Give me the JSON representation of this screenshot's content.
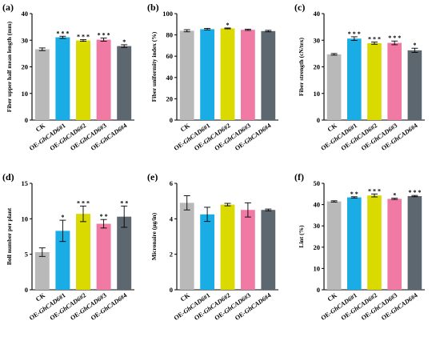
{
  "colors": [
    "#b9b9b9",
    "#1aace4",
    "#dada00",
    "#f07aa4",
    "#5c6770"
  ],
  "categories": [
    {
      "prefix": "",
      "gene": "",
      "suffix": "CK"
    },
    {
      "prefix": "OE-",
      "gene": "GhCAD6",
      "suffix": "#1"
    },
    {
      "prefix": "OE-",
      "gene": "GhCAD6",
      "suffix": "#2"
    },
    {
      "prefix": "OE-",
      "gene": "GhCAD6",
      "suffix": "#3"
    },
    {
      "prefix": "OE-",
      "gene": "GhCAD6",
      "suffix": "#4"
    }
  ],
  "chart_data": [
    {
      "type": "bar",
      "label": "(a)",
      "ylabel": "Fiber upper half mean length (mm)",
      "ylim": [
        0,
        40
      ],
      "yticks": [
        0,
        10,
        20,
        30,
        40
      ],
      "categories": [
        "CK",
        "OE-GhCAD6#1",
        "OE-GhCAD6#2",
        "OE-GhCAD6#3",
        "OE-GhCAD6#4"
      ],
      "values": [
        26.6,
        31.1,
        29.9,
        30.2,
        27.8
      ],
      "errors": [
        0.5,
        0.4,
        0.3,
        0.6,
        0.5
      ],
      "significance": [
        "",
        "* * *",
        "* * *",
        "* * *",
        "*"
      ]
    },
    {
      "type": "bar",
      "label": "(b)",
      "ylabel": "Fiber uniformity index (%)",
      "ylim": [
        0,
        100
      ],
      "yticks": [
        0,
        20,
        40,
        60,
        80,
        100
      ],
      "categories": [
        "CK",
        "OE-GhCAD6#1",
        "OE-GhCAD6#2",
        "OE-GhCAD6#3",
        "OE-GhCAD6#4"
      ],
      "values": [
        83.9,
        85.4,
        86.1,
        84.8,
        83.6
      ],
      "errors": [
        1.0,
        0.7,
        0.4,
        0.6,
        0.7
      ],
      "significance": [
        "",
        "",
        "*",
        "",
        ""
      ]
    },
    {
      "type": "bar",
      "label": "(c)",
      "ylabel": "Fiber strength (cN/tex)",
      "ylim": [
        0,
        40
      ],
      "yticks": [
        0,
        10,
        20,
        30,
        40
      ],
      "categories": [
        "CK",
        "OE-GhCAD6#1",
        "OE-GhCAD6#2",
        "OE-GhCAD6#3",
        "OE-GhCAD6#4"
      ],
      "values": [
        24.7,
        30.6,
        28.9,
        29.0,
        26.2
      ],
      "errors": [
        0.3,
        0.7,
        0.4,
        0.7,
        0.8
      ],
      "significance": [
        "",
        "* * *",
        "* * *",
        "* * *",
        "*"
      ]
    },
    {
      "type": "bar",
      "label": "(d)",
      "ylabel": "Boll number per plant",
      "ylim": [
        0,
        15
      ],
      "yticks": [
        0,
        5,
        10,
        15
      ],
      "categories": [
        "CK",
        "OE-GhCAD6#1",
        "OE-GhCAD6#2",
        "OE-GhCAD6#3",
        "OE-GhCAD6#4"
      ],
      "values": [
        5.3,
        8.3,
        10.7,
        9.3,
        10.3
      ],
      "errors": [
        0.6,
        1.5,
        1.1,
        0.6,
        1.5
      ],
      "significance": [
        "",
        "*",
        "* * *",
        "* *",
        "* *"
      ]
    },
    {
      "type": "bar",
      "label": "(e)",
      "ylabel": "Micronaire (μg/in)",
      "ylim": [
        0,
        6
      ],
      "yticks": [
        0,
        2,
        4,
        6
      ],
      "categories": [
        "CK",
        "OE-GhCAD6#1",
        "OE-GhCAD6#2",
        "OE-GhCAD6#3",
        "OE-GhCAD6#4"
      ],
      "values": [
        4.9,
        4.25,
        4.8,
        4.5,
        4.5
      ],
      "errors": [
        0.4,
        0.4,
        0.07,
        0.4,
        0.05
      ],
      "significance": [
        "",
        "",
        "",
        "",
        ""
      ]
    },
    {
      "type": "bar",
      "label": "(f)",
      "ylabel": "Lint (%)",
      "ylim": [
        0,
        50
      ],
      "yticks": [
        0,
        10,
        20,
        30,
        40,
        50
      ],
      "categories": [
        "CK",
        "OE-GhCAD6#1",
        "OE-GhCAD6#2",
        "OE-GhCAD6#3",
        "OE-GhCAD6#4"
      ],
      "values": [
        41.5,
        43.4,
        44.3,
        42.7,
        44.0
      ],
      "errors": [
        0.3,
        0.3,
        0.7,
        0.3,
        0.3
      ],
      "significance": [
        "",
        "* *",
        "* * *",
        "*",
        "* * *"
      ]
    }
  ]
}
